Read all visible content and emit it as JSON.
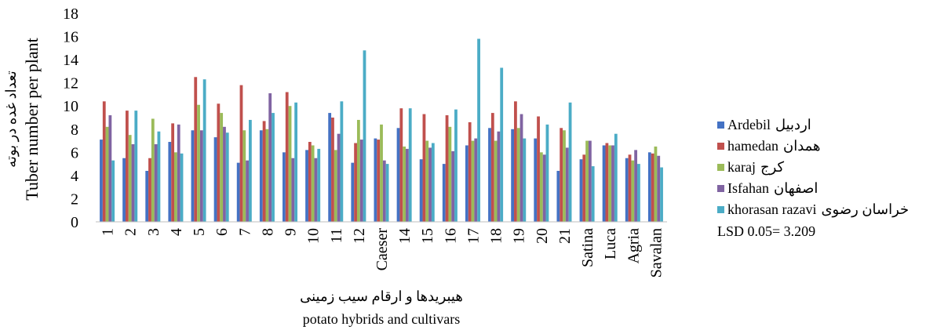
{
  "chart_data": {
    "type": "bar",
    "ylabel_fa": "تعداد غده در بوته",
    "ylabel_en": "Tuber number per plant",
    "xlabel_fa": "هیبریدها و ارقام  سیب زمینی",
    "xlabel_en": "potato hybrids and cultivars",
    "ylim": [
      0,
      18
    ],
    "yticks": [
      0,
      2,
      4,
      6,
      8,
      10,
      12,
      14,
      16,
      18
    ],
    "grid": false,
    "legend_position": "right",
    "categories": [
      "1",
      "2",
      "3",
      "4",
      "5",
      "6",
      "7",
      "8",
      "9",
      "10",
      "11",
      "12",
      "Caeser",
      "14",
      "15",
      "16",
      "17",
      "18",
      "19",
      "20",
      "21",
      "Satina",
      "Luca",
      "Agria",
      "Savalan"
    ],
    "series": [
      {
        "name": "Ardebil",
        "name_fa": "اردبیل",
        "color": "#4472C4",
        "values": [
          7.1,
          5.5,
          4.4,
          6.9,
          7.9,
          7.3,
          5.1,
          7.9,
          6.0,
          6.2,
          9.4,
          5.1,
          7.2,
          8.1,
          5.4,
          5.0,
          6.6,
          8.1,
          8.0,
          7.2,
          4.4,
          5.4,
          6.6,
          5.5,
          6.0
        ]
      },
      {
        "name": "hamedan",
        "name_fa": "همدان",
        "color": "#C0504D",
        "values": [
          10.4,
          9.6,
          5.5,
          8.5,
          12.5,
          10.2,
          11.8,
          8.7,
          11.2,
          6.9,
          9.0,
          6.8,
          7.1,
          9.8,
          9.3,
          9.2,
          8.6,
          9.4,
          10.4,
          9.1,
          8.1,
          5.8,
          6.8,
          5.8,
          5.9
        ]
      },
      {
        "name": "karaj",
        "name_fa": "کرج",
        "color": "#9BBB59",
        "values": [
          8.2,
          7.5,
          8.9,
          6.0,
          10.1,
          9.4,
          7.9,
          8.0,
          10.0,
          6.6,
          6.2,
          8.8,
          8.4,
          6.5,
          7.0,
          8.2,
          7.0,
          7.0,
          8.1,
          6.0,
          7.9,
          7.0,
          6.6,
          5.3,
          6.5
        ]
      },
      {
        "name": "Isfahan",
        "name_fa": "اصفهان",
        "color": "#8064A2",
        "values": [
          9.2,
          6.7,
          6.7,
          8.4,
          7.9,
          8.2,
          5.3,
          11.1,
          5.5,
          5.5,
          7.6,
          7.1,
          5.3,
          6.3,
          6.4,
          6.1,
          7.2,
          7.8,
          9.3,
          5.8,
          6.4,
          7.0,
          6.6,
          6.2,
          5.7
        ]
      },
      {
        "name": "khorasan razavi",
        "name_fa": "خراسان رضوی",
        "color": "#4BACC6",
        "values": [
          5.3,
          9.6,
          7.8,
          5.9,
          12.3,
          7.7,
          8.8,
          9.4,
          10.3,
          6.3,
          10.4,
          14.8,
          5.0,
          9.8,
          6.8,
          9.7,
          15.8,
          13.3,
          7.2,
          8.4,
          10.3,
          4.8,
          7.6,
          5.0,
          4.7
        ]
      }
    ],
    "annotation": "LSD 0.05= 3.209"
  }
}
